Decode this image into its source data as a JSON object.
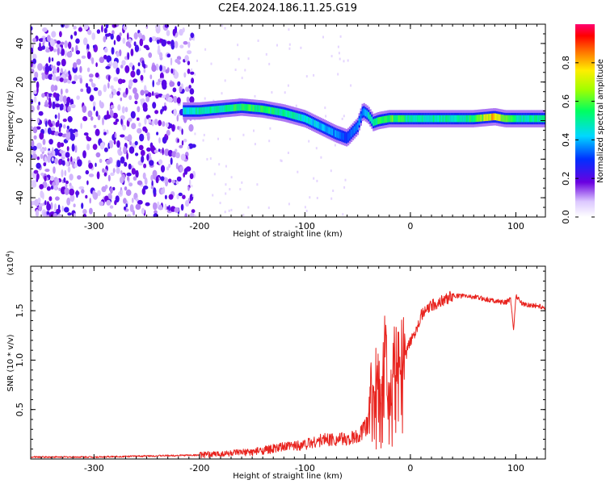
{
  "title": "C2E4.2024.186.11.25.G19",
  "colors": {
    "snr_line": "#e8231e",
    "axis": "#000000"
  },
  "chart_data": [
    {
      "type": "heatmap",
      "xlabel": "Height of straight line (km)",
      "ylabel": "Frequency (Hz)",
      "xlim": [
        -360,
        128
      ],
      "ylim": [
        -50,
        50
      ],
      "x_ticks": [
        "-300",
        "-200",
        "-100",
        "0",
        "100"
      ],
      "y_ticks": [
        "40",
        "20",
        "0",
        "-20",
        "-40"
      ],
      "colorbar": {
        "label": "Normalized spectral amplitude",
        "range": [
          0,
          1
        ],
        "ticks": [
          "0.0",
          "0.2",
          "0.4",
          "0.6",
          "0.8"
        ]
      },
      "ridge": {
        "x": [
          -215,
          -200,
          -180,
          -160,
          -140,
          -120,
          -100,
          -85,
          -70,
          -60,
          -50,
          -45,
          -40,
          -35,
          -30,
          -20,
          -10,
          0,
          20,
          40,
          60,
          80,
          90,
          100,
          128
        ],
        "freq_hz": [
          5,
          5,
          6,
          7,
          6,
          4,
          1,
          -3,
          -7,
          -9,
          -3,
          5,
          3,
          -1,
          0,
          1,
          1,
          1,
          1,
          1,
          1,
          2,
          1,
          1,
          1
        ],
        "amplitude": [
          0.45,
          0.5,
          0.5,
          0.55,
          0.55,
          0.5,
          0.45,
          0.4,
          0.35,
          0.3,
          0.35,
          0.35,
          0.45,
          0.5,
          0.55,
          0.6,
          0.55,
          0.5,
          0.5,
          0.5,
          0.55,
          0.8,
          0.6,
          0.5,
          0.5
        ]
      },
      "noise_region": {
        "x": [
          -360,
          -215
        ],
        "amplitude": 0.1
      }
    },
    {
      "type": "line",
      "xlabel": "Height of straight line (km)",
      "ylabel": "SNR (10 * v/v)",
      "y_multiplier": "(x10^4)",
      "xlim": [
        -360,
        128
      ],
      "ylim": [
        0,
        1.95
      ],
      "x_ticks": [
        "-300",
        "-200",
        "-100",
        "0",
        "100"
      ],
      "y_ticks": [
        "1.5",
        "1.0",
        "0.5"
      ],
      "series": [
        {
          "x": [
            -360,
            -300,
            -250,
            -200,
            -150,
            -120,
            -100,
            -80,
            -60,
            -50,
            -40,
            -36,
            -34,
            -32,
            -28,
            -24,
            -20,
            -16,
            -12,
            -8,
            -4,
            0,
            5,
            10,
            20,
            30,
            40,
            50,
            60,
            70,
            80,
            90,
            95,
            98,
            100,
            105,
            110,
            120,
            128
          ],
          "y": [
            0.02,
            0.02,
            0.03,
            0.04,
            0.07,
            0.12,
            0.15,
            0.2,
            0.2,
            0.22,
            0.35,
            1.0,
            0.55,
            1.1,
            0.4,
            1.2,
            0.4,
            1.0,
            1.1,
            1.15,
            1.05,
            1.2,
            1.3,
            1.45,
            1.55,
            1.6,
            1.65,
            1.65,
            1.64,
            1.62,
            1.6,
            1.58,
            1.62,
            1.3,
            1.66,
            1.58,
            1.56,
            1.55,
            1.53
          ]
        }
      ]
    }
  ]
}
